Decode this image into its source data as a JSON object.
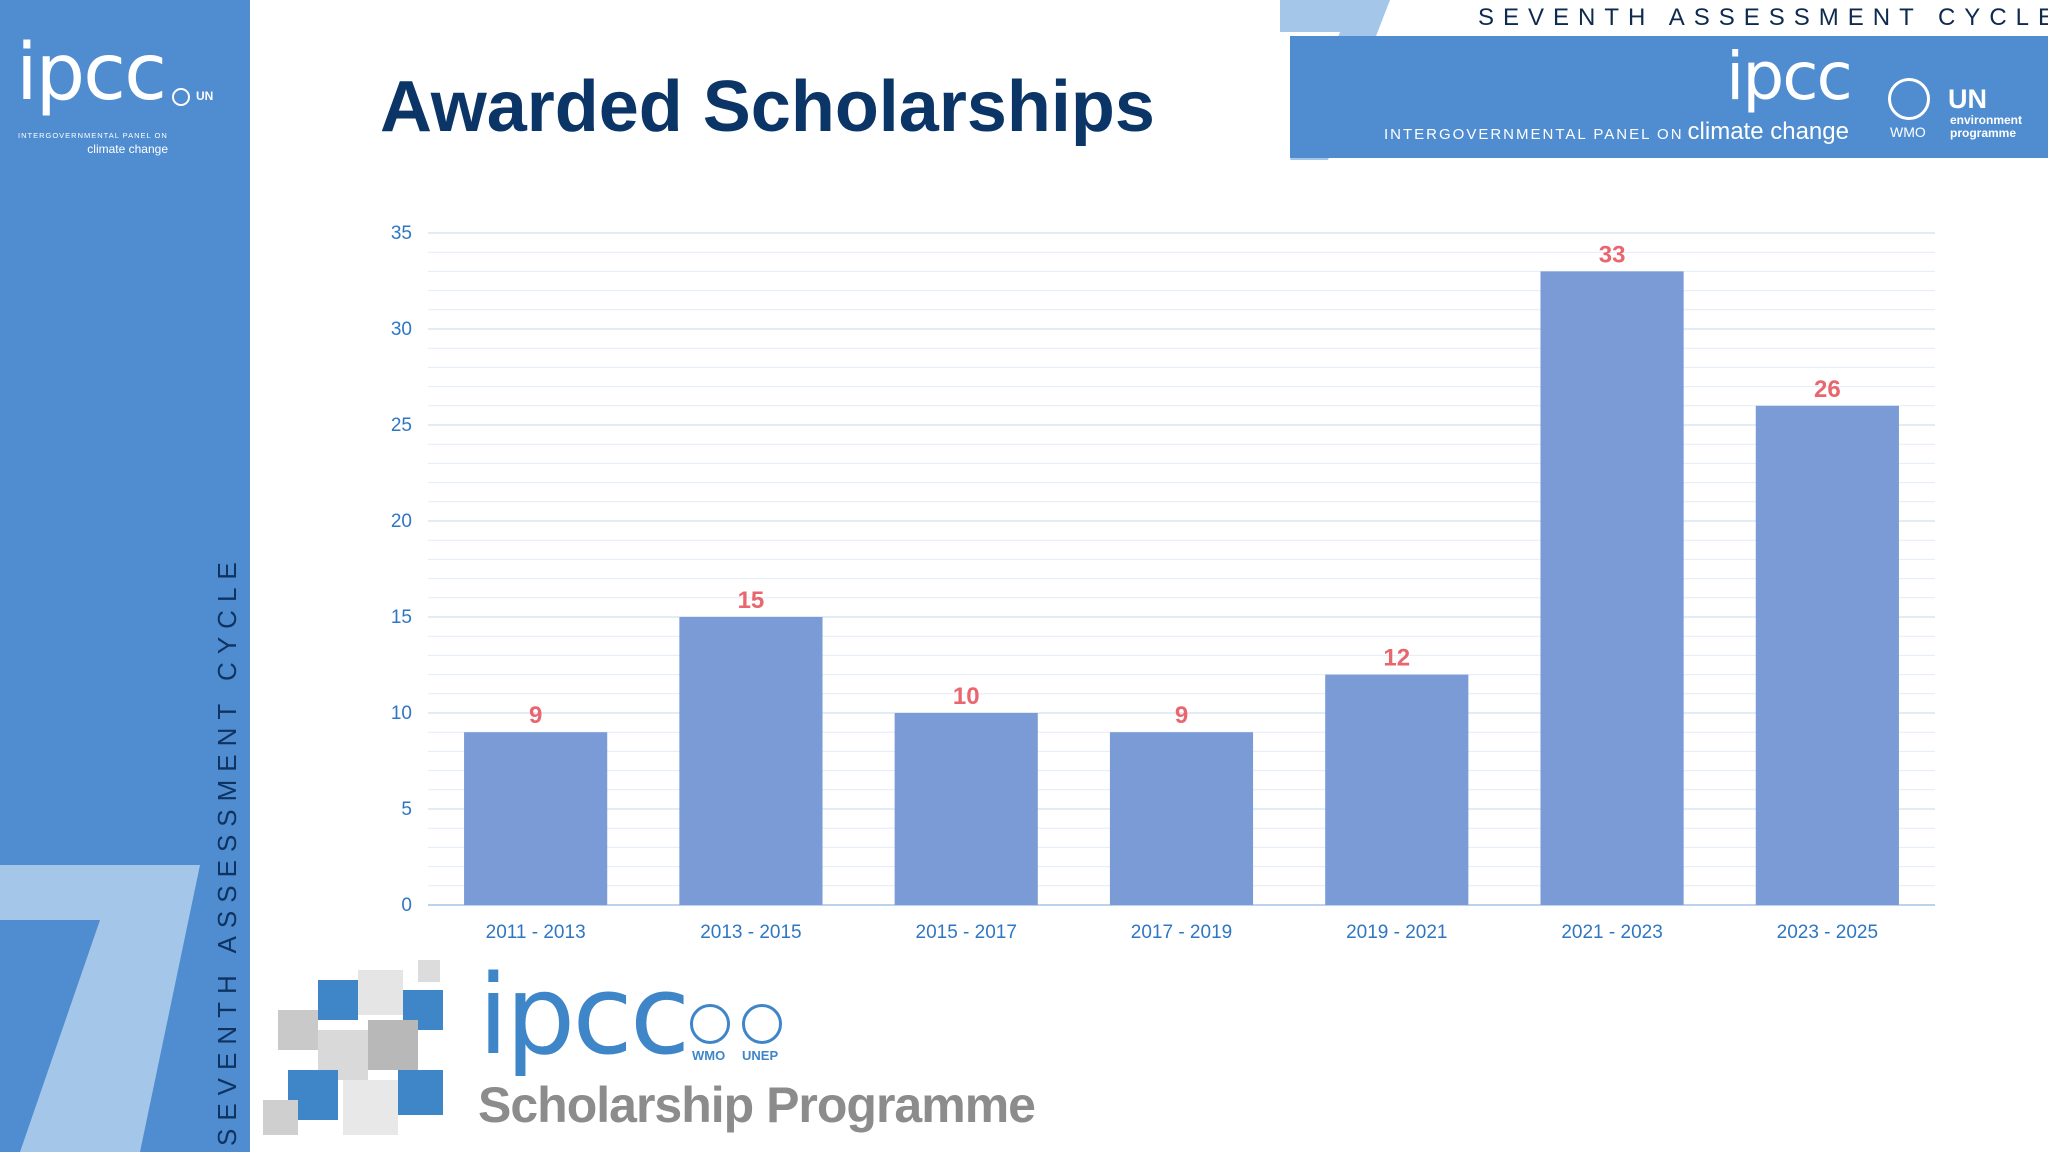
{
  "branding": {
    "side_logo_text": "ipcc",
    "side_logo_sub": "INTERGOVERNMENTAL PANEL ON",
    "side_logo_cc": "climate change",
    "side_partner_text": "UN",
    "side_cycle_text": "SEVENTH ASSESSMENT CYCLE",
    "top_cycle_text": "SEVENTH ASSESSMENT CYCLE",
    "top_logo_text": "ipcc",
    "top_sub_text": "INTERGOVERNMENTAL PANEL ON",
    "top_cc_text": "climate change",
    "top_wmo_label": "WMO",
    "top_un_text": "UN",
    "top_un_sub": "environment programme",
    "scholarship_logo_text": "ipcc",
    "scholarship_wmo": "WMO",
    "scholarship_unep": "UNEP",
    "scholarship_programme": "Scholarship Programme",
    "colors": {
      "sidebar": "#4f8cd0",
      "seven": "#a4c6e9",
      "title": "#0b3566",
      "bar": "#7a9bd6",
      "value_label": "#e9666e",
      "axis_label": "#2f76c2"
    }
  },
  "page_title": "Awarded Scholarships",
  "chart_data": {
    "type": "bar",
    "title": "",
    "xlabel": "",
    "ylabel": "",
    "categories": [
      "2011 - 2013",
      "2013 - 2015",
      "2015 - 2017",
      "2017 - 2019",
      "2019 - 2021",
      "2021 - 2023",
      "2023 - 2025"
    ],
    "values": [
      9,
      15,
      10,
      9,
      12,
      33,
      26
    ],
    "ylim": [
      0,
      35
    ],
    "yticks": [
      0,
      5,
      10,
      15,
      20,
      25,
      30,
      35
    ],
    "grid": true,
    "legend": "none"
  }
}
